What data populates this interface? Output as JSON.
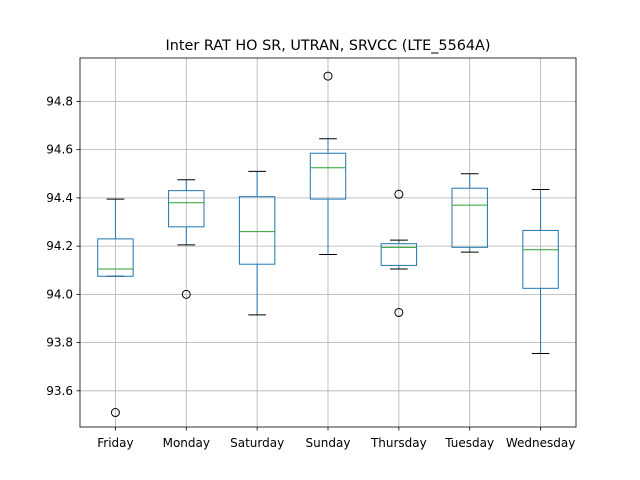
{
  "chart_data": {
    "type": "box",
    "title": "Inter RAT HO SR, UTRAN, SRVCC (LTE_5564A)",
    "xlabel": "",
    "ylabel": "",
    "ylim": [
      93.45,
      94.98
    ],
    "yticks": [
      93.6,
      93.8,
      94.0,
      94.2,
      94.4,
      94.6,
      94.8
    ],
    "yticklabels": [
      "93.6",
      "93.8",
      "94.0",
      "94.2",
      "94.4",
      "94.6",
      "94.8"
    ],
    "grid": true,
    "colors": {
      "box": "#1f77b4",
      "median": "#2ca02c",
      "whisker_cap": "#000000",
      "grid": "#b0b0b0",
      "outlier": "#000000"
    },
    "categories": [
      "Friday",
      "Monday",
      "Saturday",
      "Sunday",
      "Thursday",
      "Tuesday",
      "Wednesday"
    ],
    "boxes": [
      {
        "category": "Friday",
        "whislo": 94.075,
        "q1": 94.075,
        "med": 94.105,
        "q3": 94.23,
        "whishi": 94.395,
        "fliers": [
          93.51
        ]
      },
      {
        "category": "Monday",
        "whislo": 94.205,
        "q1": 94.28,
        "med": 94.38,
        "q3": 94.43,
        "whishi": 94.475,
        "fliers": [
          94.0
        ]
      },
      {
        "category": "Saturday",
        "whislo": 93.915,
        "q1": 94.125,
        "med": 94.26,
        "q3": 94.405,
        "whishi": 94.51,
        "fliers": []
      },
      {
        "category": "Sunday",
        "whislo": 94.165,
        "q1": 94.395,
        "med": 94.525,
        "q3": 94.585,
        "whishi": 94.645,
        "fliers": [
          94.905
        ]
      },
      {
        "category": "Thursday",
        "whislo": 94.105,
        "q1": 94.12,
        "med": 94.195,
        "q3": 94.21,
        "whishi": 94.225,
        "fliers": [
          94.415,
          93.925
        ]
      },
      {
        "category": "Tuesday",
        "whislo": 94.175,
        "q1": 94.195,
        "med": 94.37,
        "q3": 94.44,
        "whishi": 94.5,
        "fliers": []
      },
      {
        "category": "Wednesday",
        "whislo": 93.755,
        "q1": 94.025,
        "med": 94.185,
        "q3": 94.265,
        "whishi": 94.435,
        "fliers": []
      }
    ]
  }
}
